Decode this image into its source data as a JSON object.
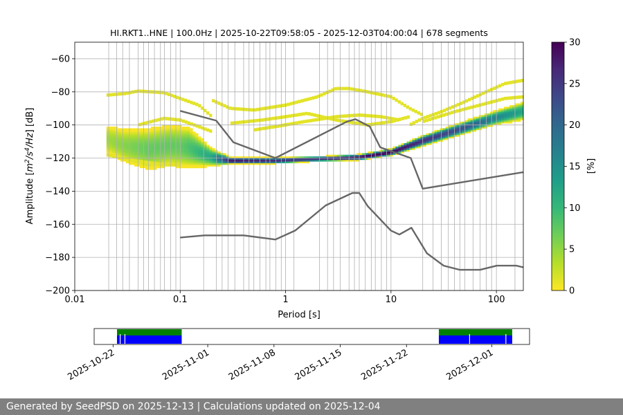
{
  "chart_data": [
    {
      "type": "heatmap",
      "title": "HI.RKT1..HNE | 100.0Hz | 2025-10-22T09:58:05 - 2025-12-03T04:00:04 | 678 segments",
      "xlabel": "Period [s]",
      "ylabel_parts": [
        "Amplitude [",
        "m",
        "2",
        "/s",
        "4",
        "/Hz",
        "] [dB]"
      ],
      "xscale": "log",
      "xlim": [
        0.01,
        180
      ],
      "ylim": [
        -200,
        -50
      ],
      "xticks": [
        0.01,
        0.1,
        1,
        10,
        100
      ],
      "xtick_labels": [
        "0.01",
        "0.1",
        "1",
        "10",
        "100"
      ],
      "yticks": [
        -200,
        -180,
        -160,
        -140,
        -120,
        -100,
        -80,
        -60
      ],
      "ytick_labels": [
        "−200",
        "−180",
        "−160",
        "−140",
        "−120",
        "−100",
        "−80",
        "−60"
      ],
      "grid": true,
      "colorbar": {
        "label": "[%]",
        "range": [
          0,
          30
        ],
        "ticks": [
          0,
          5,
          10,
          15,
          20,
          25,
          30
        ],
        "tick_labels": [
          "0",
          "5",
          "10",
          "15",
          "20",
          "25",
          "30"
        ],
        "colormap": [
          "#fde725",
          "#b5de2b",
          "#6ece58",
          "#35b779",
          "#1f9e89",
          "#26828e",
          "#31688e",
          "#3e4989",
          "#482878",
          "#440154"
        ]
      },
      "vertical_grid_periods": [
        0.021,
        0.025,
        0.0285,
        0.033,
        0.04,
        0.045,
        0.05,
        0.057,
        0.065,
        0.071,
        0.081,
        0.091,
        0.167,
        0.22,
        0.25,
        0.285,
        0.33,
        0.4,
        0.45,
        0.5,
        0.57,
        0.65,
        0.71,
        0.81,
        0.91,
        1.2,
        2.1,
        2.5,
        2.85,
        3.3,
        4,
        4.5,
        5,
        5.7,
        6.5,
        7.1,
        8.1,
        9.1,
        20,
        25,
        30,
        35,
        40,
        45,
        50,
        60,
        70,
        80,
        90,
        150
      ],
      "noise_models": [
        {
          "name": "new-high-noise-model",
          "color": "#666666",
          "points": [
            [
              0.1,
              -91.5
            ],
            [
              0.22,
              -97.4
            ],
            [
              0.32,
              -110.5
            ],
            [
              0.8,
              -120
            ],
            [
              3.8,
              -98
            ],
            [
              4.6,
              -96.5
            ],
            [
              6.3,
              -101
            ],
            [
              7.9,
              -113.5
            ],
            [
              15.4,
              -120
            ],
            [
              20,
              -138.5
            ],
            [
              180,
              -128.5
            ]
          ]
        },
        {
          "name": "new-low-noise-model",
          "color": "#666666",
          "points": [
            [
              0.1,
              -168
            ],
            [
              0.17,
              -166.7
            ],
            [
              0.4,
              -166.7
            ],
            [
              0.8,
              -169.2
            ],
            [
              1.24,
              -163.7
            ],
            [
              2.4,
              -148.6
            ],
            [
              4.3,
              -141.1
            ],
            [
              5,
              -141.1
            ],
            [
              6,
              -149
            ],
            [
              10,
              -163.8
            ],
            [
              12,
              -166.2
            ],
            [
              15.6,
              -162.1
            ],
            [
              21.9,
              -177.5
            ],
            [
              31.6,
              -185
            ],
            [
              45,
              -187.5
            ],
            [
              70,
              -187.5
            ],
            [
              101,
              -185
            ],
            [
              154,
              -185
            ],
            [
              180,
              -186
            ]
          ]
        }
      ],
      "psd_density": {
        "period_min": 0.02,
        "period_max": 180,
        "mode_curve_db": [
          [
            0.02,
            -109
          ],
          [
            0.03,
            -113
          ],
          [
            0.05,
            -115
          ],
          [
            0.08,
            -113
          ],
          [
            0.12,
            -114
          ],
          [
            0.2,
            -120
          ],
          [
            0.3,
            -122
          ],
          [
            0.8,
            -122
          ],
          [
            2,
            -121
          ],
          [
            5,
            -120
          ],
          [
            10,
            -117
          ],
          [
            20,
            -110
          ],
          [
            50,
            -102
          ],
          [
            100,
            -96
          ],
          [
            180,
            -92
          ]
        ],
        "band_halfwidth_db": [
          [
            0.02,
            7
          ],
          [
            0.05,
            11
          ],
          [
            0.12,
            11
          ],
          [
            0.2,
            5
          ],
          [
            0.3,
            2
          ],
          [
            2,
            1.5
          ],
          [
            10,
            2
          ],
          [
            20,
            3
          ],
          [
            100,
            4
          ],
          [
            180,
            5
          ]
        ],
        "peak_percent": [
          [
            0.02,
            4
          ],
          [
            0.05,
            7
          ],
          [
            0.1,
            7
          ],
          [
            0.2,
            12
          ],
          [
            0.3,
            28
          ],
          [
            2,
            25
          ],
          [
            6,
            30
          ],
          [
            10,
            30
          ],
          [
            20,
            26
          ],
          [
            50,
            22
          ],
          [
            100,
            16
          ],
          [
            180,
            12
          ]
        ],
        "sparse_tracks_db": [
          [
            [
              0.02,
              -82
            ],
            [
              0.03,
              -81
            ],
            [
              0.04,
              -79.5
            ],
            [
              0.07,
              -80.5
            ],
            [
              0.1,
              -84
            ],
            [
              0.15,
              -88
            ],
            [
              0.2,
              -95
            ]
          ],
          [
            [
              0.2,
              -85
            ],
            [
              0.3,
              -90
            ],
            [
              0.5,
              -91
            ],
            [
              1,
              -88
            ],
            [
              2,
              -83
            ],
            [
              3,
              -78
            ],
            [
              4,
              -78
            ],
            [
              6,
              -80
            ],
            [
              10,
              -83
            ],
            [
              15,
              -90
            ],
            [
              20,
              -94
            ]
          ],
          [
            [
              0.3,
              -99
            ],
            [
              0.6,
              -97
            ],
            [
              1,
              -95
            ],
            [
              1.6,
              -93
            ],
            [
              3,
              -97
            ],
            [
              6,
              -100
            ],
            [
              10,
              -98
            ],
            [
              15,
              -95
            ]
          ],
          [
            [
              0.5,
              -103
            ],
            [
              0.8,
              -101
            ],
            [
              1.5,
              -98
            ],
            [
              3,
              -95
            ],
            [
              5,
              -94
            ],
            [
              8,
              -95
            ],
            [
              12,
              -97
            ]
          ],
          [
            [
              15,
              -100
            ],
            [
              20,
              -96
            ],
            [
              30,
              -92
            ],
            [
              50,
              -86
            ],
            [
              80,
              -80
            ],
            [
              120,
              -75
            ],
            [
              180,
              -73
            ]
          ],
          [
            [
              20,
              -98
            ],
            [
              40,
              -92
            ],
            [
              80,
              -87
            ],
            [
              120,
              -84
            ],
            [
              180,
              -83
            ]
          ],
          [
            [
              0.04,
              -100
            ],
            [
              0.07,
              -96
            ],
            [
              0.1,
              -97
            ],
            [
              0.15,
              -101
            ],
            [
              0.2,
              -104
            ]
          ],
          [
            [
              0.02,
              -118
            ],
            [
              0.04,
              -122
            ],
            [
              0.07,
              -124
            ],
            [
              0.1,
              -124
            ]
          ]
        ]
      }
    },
    {
      "type": "timeline",
      "name": "data-coverage",
      "date_ticks": [
        "2025-10-22",
        "2025-11-01",
        "2025-11-08",
        "2025-11-15",
        "2025-11-22",
        "2025-12-01"
      ],
      "range": [
        "2025-10-20",
        "2025-12-05"
      ],
      "coverage_colors": {
        "available": "#008000",
        "psd": "#0000ff"
      },
      "segments": [
        {
          "start": "2025-10-22T09:58:05",
          "end": "2025-10-29T06:00:00"
        },
        {
          "start": "2025-11-25T10:00:00",
          "end": "2025-12-03T04:00:04"
        }
      ],
      "gaps": [
        "2025-10-22T18:00:00",
        "2025-10-23T06:00:00",
        "2025-11-28T16:00:00",
        "2025-12-02T12:00:00"
      ]
    }
  ],
  "footer": {
    "text": "Generated by SeedPSD on 2025-12-13 | Calculations updated on 2025-12-04"
  }
}
